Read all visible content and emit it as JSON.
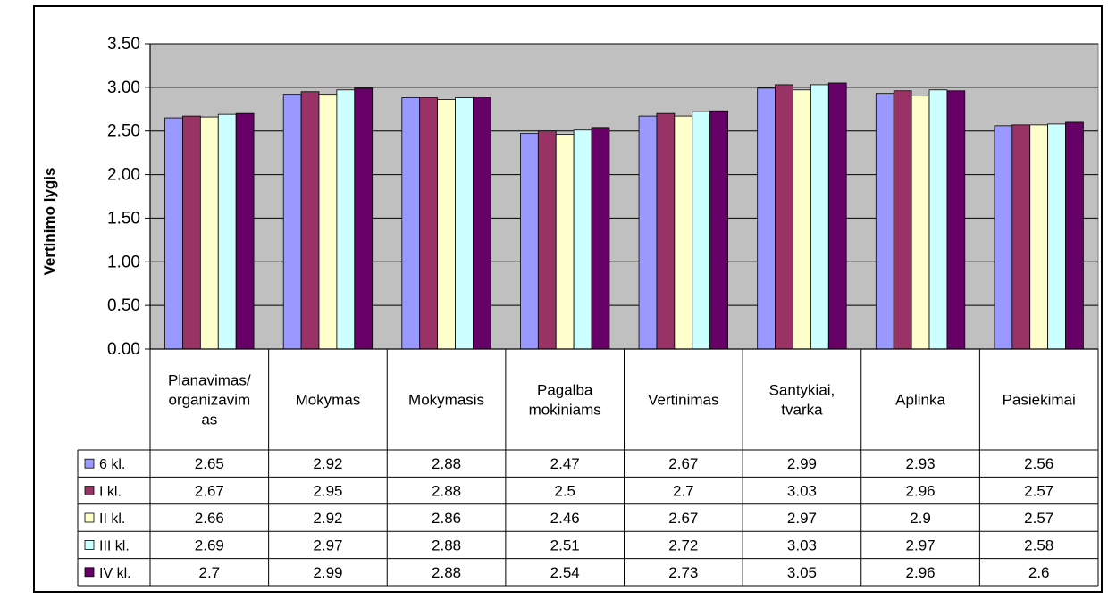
{
  "chart_data": {
    "type": "bar",
    "title": "",
    "xlabel": "",
    "ylabel": "Vertinimo lygis",
    "ylim": [
      0,
      3.5
    ],
    "yticks": [
      "0.00",
      "0.50",
      "1.00",
      "1.50",
      "2.00",
      "2.50",
      "3.00",
      "3.50"
    ],
    "grid": true,
    "legend": "data-table",
    "categories": [
      [
        "Planavimas/",
        "organizavim",
        "as"
      ],
      [
        "Mokymas"
      ],
      [
        "Mokymasis"
      ],
      [
        "Pagalba",
        "mokiniams"
      ],
      [
        "Vertinimas"
      ],
      [
        "Santykiai,",
        "tvarka"
      ],
      [
        "Aplinka"
      ],
      [
        "Pasiekimai"
      ]
    ],
    "series": [
      {
        "name": "6 kl.",
        "color": "#9999FF",
        "values": [
          2.65,
          2.92,
          2.88,
          2.47,
          2.67,
          2.99,
          2.93,
          2.56
        ],
        "labels": [
          "2.65",
          "2.92",
          "2.88",
          "2.47",
          "2.67",
          "2.99",
          "2.93",
          "2.56"
        ]
      },
      {
        "name": "I kl.",
        "color": "#993366",
        "values": [
          2.67,
          2.95,
          2.88,
          2.5,
          2.7,
          3.03,
          2.96,
          2.57
        ],
        "labels": [
          "2.67",
          "2.95",
          "2.88",
          "2.5",
          "2.7",
          "3.03",
          "2.96",
          "2.57"
        ]
      },
      {
        "name": "II kl.",
        "color": "#FFFFCC",
        "values": [
          2.66,
          2.92,
          2.86,
          2.46,
          2.67,
          2.97,
          2.9,
          2.57
        ],
        "labels": [
          "2.66",
          "2.92",
          "2.86",
          "2.46",
          "2.67",
          "2.97",
          "2.9",
          "2.57"
        ]
      },
      {
        "name": "III kl.",
        "color": "#CCFFFF",
        "values": [
          2.69,
          2.97,
          2.88,
          2.51,
          2.72,
          3.03,
          2.97,
          2.58
        ],
        "labels": [
          "2.69",
          "2.97",
          "2.88",
          "2.51",
          "2.72",
          "3.03",
          "2.97",
          "2.58"
        ]
      },
      {
        "name": "IV kl.",
        "color": "#660066",
        "values": [
          2.7,
          2.99,
          2.88,
          2.54,
          2.73,
          3.05,
          2.96,
          2.6
        ],
        "labels": [
          "2.7",
          "2.99",
          "2.88",
          "2.54",
          "2.73",
          "3.05",
          "2.96",
          "2.6"
        ]
      }
    ],
    "plot_background": "#C0C0C0"
  }
}
